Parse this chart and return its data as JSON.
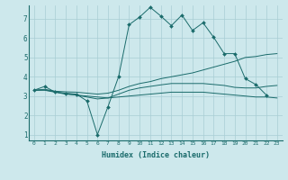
{
  "xlabel": "Humidex (Indice chaleur)",
  "bg_color": "#cde8ec",
  "grid_color": "#a8cdd4",
  "line_color": "#1a6b6b",
  "xlim": [
    -0.5,
    23.5
  ],
  "ylim": [
    0.7,
    7.7
  ],
  "xticks": [
    0,
    1,
    2,
    3,
    4,
    5,
    6,
    7,
    8,
    9,
    10,
    11,
    12,
    13,
    14,
    15,
    16,
    17,
    18,
    19,
    20,
    21,
    22,
    23
  ],
  "yticks": [
    1,
    2,
    3,
    4,
    5,
    6,
    7
  ],
  "series_main": {
    "x": [
      0,
      1,
      2,
      3,
      4,
      5,
      6,
      7,
      8,
      9,
      10,
      11,
      12,
      13,
      14,
      15,
      16,
      17,
      18,
      19,
      20,
      21,
      22
    ],
    "y": [
      3.3,
      3.5,
      3.2,
      3.15,
      3.1,
      2.75,
      1.0,
      2.45,
      4.0,
      6.7,
      7.1,
      7.6,
      7.15,
      6.65,
      7.2,
      6.4,
      6.8,
      6.05,
      5.2,
      5.2,
      3.9,
      3.6,
      3.05
    ]
  },
  "series_line2": {
    "x": [
      0,
      1,
      2,
      3,
      4,
      5,
      6,
      7,
      8,
      9,
      10,
      11,
      12,
      13,
      14,
      15,
      16,
      17,
      18,
      19,
      20,
      21,
      22,
      23
    ],
    "y": [
      3.3,
      3.35,
      3.25,
      3.22,
      3.2,
      3.15,
      3.1,
      3.15,
      3.3,
      3.5,
      3.65,
      3.75,
      3.9,
      4.0,
      4.1,
      4.2,
      4.35,
      4.5,
      4.65,
      4.8,
      5.0,
      5.05,
      5.15,
      5.2
    ]
  },
  "series_line3": {
    "x": [
      0,
      1,
      2,
      3,
      4,
      5,
      6,
      7,
      8,
      9,
      10,
      11,
      12,
      13,
      14,
      15,
      16,
      17,
      18,
      19,
      20,
      21,
      22,
      23
    ],
    "y": [
      3.3,
      3.3,
      3.2,
      3.1,
      3.05,
      3.0,
      2.95,
      2.9,
      2.95,
      3.0,
      3.05,
      3.1,
      3.15,
      3.2,
      3.2,
      3.2,
      3.2,
      3.15,
      3.1,
      3.05,
      3.0,
      2.95,
      2.95,
      2.9
    ]
  },
  "series_line4": {
    "x": [
      0,
      1,
      2,
      3,
      4,
      5,
      6,
      7,
      8,
      9,
      10,
      11,
      12,
      13,
      14,
      15,
      16,
      17,
      18,
      19,
      20,
      21,
      22,
      23
    ],
    "y": [
      3.3,
      3.32,
      3.22,
      3.12,
      3.05,
      2.95,
      2.85,
      2.9,
      3.1,
      3.3,
      3.42,
      3.5,
      3.58,
      3.65,
      3.65,
      3.65,
      3.65,
      3.6,
      3.55,
      3.45,
      3.42,
      3.42,
      3.5,
      3.55
    ]
  }
}
